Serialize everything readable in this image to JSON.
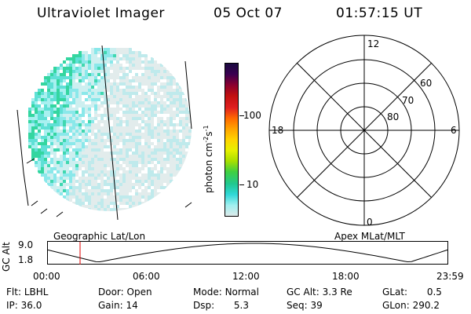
{
  "header": {
    "instrument": "Ultraviolet Imager",
    "date": "05 Oct 07",
    "time": "01:57:15 UT"
  },
  "colorbar": {
    "unit_label": "photon cm",
    "unit_exp1": "-2",
    "unit_s": "s",
    "unit_exp2": "-1",
    "ticks": [
      "100",
      "10"
    ],
    "colors": [
      "#1a0a40",
      "#3a0050",
      "#8a0030",
      "#c01010",
      "#e02020",
      "#ff6a00",
      "#ffa500",
      "#ffd400",
      "#e6f000",
      "#a8e000",
      "#40d040",
      "#20c890",
      "#30d8d8",
      "#a0f0f0",
      "#dceaea"
    ]
  },
  "left_panel": {
    "caption": "Geographic Lat/Lon"
  },
  "polar": {
    "caption": "Apex MLat/MLT",
    "mlt_labels": {
      "top": "12",
      "left": "18",
      "right": "6",
      "bottom": "0"
    },
    "lat_labels": [
      "60",
      "70",
      "80"
    ]
  },
  "orbit": {
    "axis_title": "GC Alt",
    "y_ticks": [
      "9.0",
      "1.8"
    ],
    "x_ticks": [
      "00:00",
      "06:00",
      "12:00",
      "18:00",
      "23:59"
    ]
  },
  "status": {
    "row1": [
      {
        "label": "Flt:",
        "value": "LBHL"
      },
      {
        "label": "Door:",
        "value": "Open"
      },
      {
        "label": "Mode:",
        "value": "Normal"
      },
      {
        "label": "GC Alt:",
        "value": "3.3 Re"
      },
      {
        "label": "GLat:",
        "value": "0.5"
      }
    ],
    "row2": [
      {
        "label": "IP:",
        "value": "36.0"
      },
      {
        "label": "Gain:",
        "value": "14"
      },
      {
        "label": "Dsp:",
        "value": "5.3"
      },
      {
        "label": "Seq:",
        "value": "39"
      },
      {
        "label": "GLon:",
        "value": "290.2"
      }
    ]
  }
}
